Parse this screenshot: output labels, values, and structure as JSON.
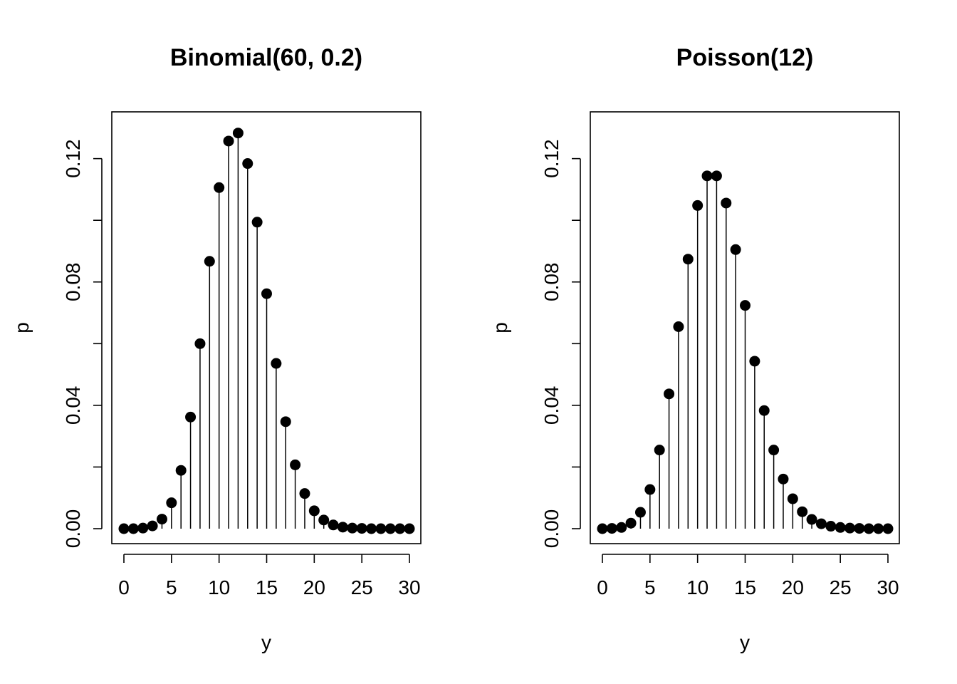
{
  "chart_data": [
    {
      "type": "lollipop",
      "title": "Binomial(60, 0.2)",
      "xlabel": "y",
      "ylabel": "p",
      "xlim": [
        0,
        30
      ],
      "ylim": [
        0,
        0.128
      ],
      "x_ticks": [
        0,
        5,
        10,
        15,
        20,
        25,
        30
      ],
      "y_ticks": [
        0.0,
        0.04,
        0.08,
        0.12
      ],
      "y_tick_labels": [
        "0.00",
        "0.04",
        "0.08",
        "0.12"
      ],
      "y_minor_ticks": [
        0.02,
        0.06,
        0.1
      ],
      "x": [
        0,
        1,
        2,
        3,
        4,
        5,
        6,
        7,
        8,
        9,
        10,
        11,
        12,
        13,
        14,
        15,
        16,
        17,
        18,
        19,
        20,
        21,
        22,
        23,
        24,
        25,
        26,
        27,
        28,
        29,
        30
      ],
      "values": [
        0.0,
        0.0,
        0.0002,
        0.0009,
        0.0031,
        0.0084,
        0.0189,
        0.0362,
        0.06,
        0.0867,
        0.1106,
        0.1257,
        0.1283,
        0.1184,
        0.0994,
        0.0762,
        0.0536,
        0.0347,
        0.0207,
        0.0114,
        0.0058,
        0.0028,
        0.0012,
        0.0005,
        0.0002,
        0.0001,
        0.0,
        0.0,
        0.0,
        0.0,
        0.0
      ]
    },
    {
      "type": "lollipop",
      "title": "Poisson(12)",
      "xlabel": "y",
      "ylabel": "p",
      "xlim": [
        0,
        30
      ],
      "ylim": [
        0,
        0.128
      ],
      "x_ticks": [
        0,
        5,
        10,
        15,
        20,
        25,
        30
      ],
      "y_ticks": [
        0.0,
        0.04,
        0.08,
        0.12
      ],
      "y_tick_labels": [
        "0.00",
        "0.04",
        "0.08",
        "0.12"
      ],
      "y_minor_ticks": [
        0.02,
        0.06,
        0.1
      ],
      "x": [
        0,
        1,
        2,
        3,
        4,
        5,
        6,
        7,
        8,
        9,
        10,
        11,
        12,
        13,
        14,
        15,
        16,
        17,
        18,
        19,
        20,
        21,
        22,
        23,
        24,
        25,
        26,
        27,
        28,
        29,
        30
      ],
      "values": [
        0.0,
        0.0001,
        0.0004,
        0.0018,
        0.0053,
        0.0127,
        0.0255,
        0.0437,
        0.0655,
        0.0874,
        0.1048,
        0.1144,
        0.1144,
        0.1056,
        0.0905,
        0.0724,
        0.0543,
        0.0383,
        0.0255,
        0.0161,
        0.0097,
        0.0055,
        0.003,
        0.0016,
        0.0008,
        0.0004,
        0.0002,
        0.0001,
        0.0,
        0.0,
        0.0
      ]
    }
  ]
}
